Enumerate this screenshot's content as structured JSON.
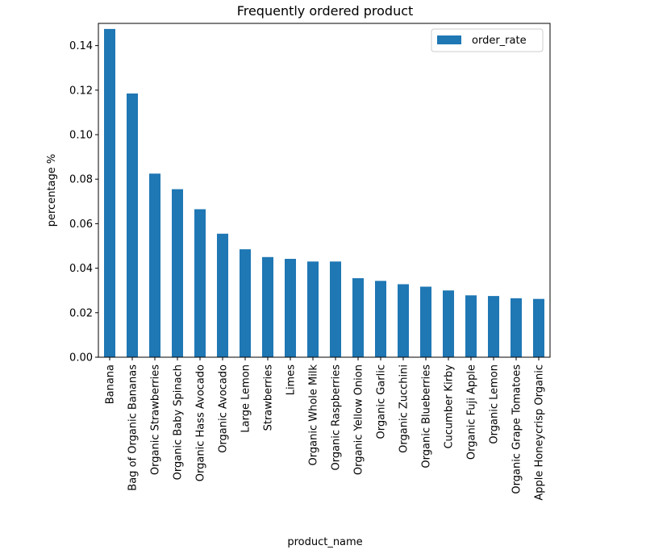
{
  "chart_data": {
    "type": "bar",
    "title": "Frequently ordered product",
    "xlabel": "product_name",
    "ylabel": "percentage %",
    "ylim": [
      0,
      0.15
    ],
    "yticks": [
      "0.00",
      "0.02",
      "0.04",
      "0.06",
      "0.08",
      "0.10",
      "0.12",
      "0.14"
    ],
    "grid": false,
    "legend_position": "top-right",
    "categories": [
      "Banana",
      "Bag of Organic Bananas",
      "Organic Strawberries",
      "Organic Baby Spinach",
      "Organic Hass Avocado",
      "Organic Avocado",
      "Large Lemon",
      "Strawberries",
      "Limes",
      "Organic Whole Milk",
      "Organic Raspberries",
      "Organic Yellow Onion",
      "Organic Garlic",
      "Organic Zucchini",
      "Organic Blueberries",
      "Cucumber Kirby",
      "Organic Fuji Apple",
      "Organic Lemon",
      "Organic Grape Tomatoes",
      "Apple Honeycrisp Organic"
    ],
    "series": [
      {
        "name": "order_rate",
        "color": "#1f77b4",
        "values": [
          0.1475,
          0.1185,
          0.0825,
          0.0755,
          0.0665,
          0.0555,
          0.0485,
          0.045,
          0.0442,
          0.043,
          0.043,
          0.0355,
          0.0343,
          0.0328,
          0.0317,
          0.03,
          0.0278,
          0.0275,
          0.0265,
          0.0262
        ]
      }
    ]
  }
}
